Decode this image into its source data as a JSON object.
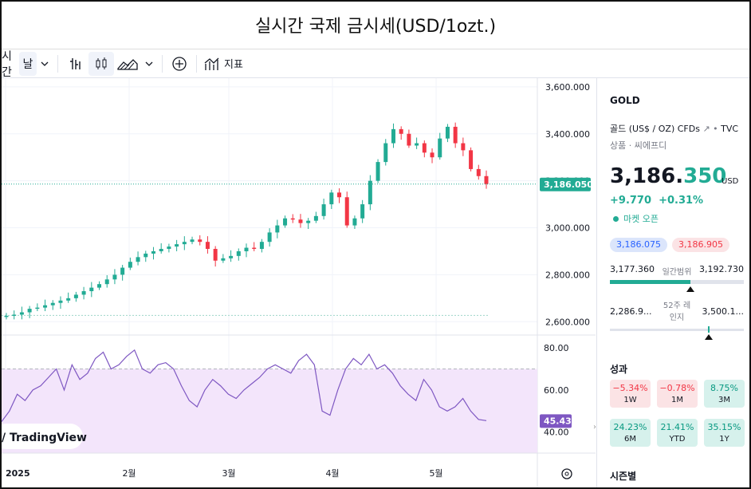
{
  "title": "실시간 국제 금시세(USD/1ozt.)",
  "toolbar": {
    "interval_label": "시간",
    "interval_value": "날",
    "indicators_label": "지표"
  },
  "chart": {
    "price_ticks": [
      "3,600.000",
      "3,400.000",
      "3,200.000",
      "3,000.000",
      "2,800.000",
      "2,600.000"
    ],
    "current_price_label": "3,186.050",
    "rsi_ticks": [
      "80.00",
      "60.00",
      "40.00"
    ],
    "rsi_value_label": "45.43",
    "watermark": "TradingView",
    "time_labels": [
      "2025",
      "2월",
      "3월",
      "4월",
      "5월"
    ],
    "colors": {
      "up": "#22ab94",
      "down": "#f23645",
      "rsi": "#7e57c2",
      "rsi_band": "#f3e5fb",
      "price_line": "#22ab94"
    }
  },
  "chart_data": {
    "type": "line",
    "series": [
      {
        "values": [
          2625,
          2630,
          2640,
          2655,
          2660,
          2670,
          2680,
          2690,
          2700,
          2715,
          2730,
          2745,
          2760,
          2780,
          2800,
          2830,
          2855,
          2875,
          2890,
          2900,
          2910,
          2920,
          2930,
          2940,
          2950,
          2940,
          2910,
          2860,
          2870,
          2880,
          2900,
          2915,
          2910,
          2940,
          2980,
          3010,
          3040,
          3035,
          3020,
          3030,
          3050,
          3100,
          3150,
          3130,
          3010,
          3040,
          3100,
          3200,
          3280,
          3360,
          3420,
          3400,
          3350,
          3360,
          3320,
          3300,
          3380,
          3430,
          3360,
          3330,
          3250,
          3220,
          3186
        ]
      },
      {
        "values": [
          45,
          50,
          58,
          55,
          60,
          62,
          66,
          70,
          60,
          72,
          65,
          68,
          75,
          78,
          70,
          72,
          76,
          79,
          70,
          68,
          72,
          73,
          70,
          62,
          55,
          52,
          60,
          65,
          62,
          58,
          56,
          60,
          63,
          66,
          70,
          72,
          70,
          68,
          74,
          77,
          72,
          50,
          48,
          60,
          70,
          75,
          72,
          77,
          70,
          72,
          68,
          62,
          58,
          55,
          65,
          60,
          52,
          50,
          52,
          56,
          50,
          46,
          45.43
        ]
      }
    ],
    "ylim": [
      2550,
      3620
    ],
    "rsi_ylim": [
      30,
      85
    ]
  },
  "panel": {
    "symbol": "GOLD",
    "description": "골드 (US$ / OZ) CFDs",
    "exchange": "TVC",
    "category": "상품 · 씨에프디",
    "price_main": "3,186.",
    "price_decimal": "350",
    "currency": "USD",
    "change": "+9.770",
    "change_pct": "+0.31%",
    "market_status": "마켓 오픈",
    "bid": "3,186.075",
    "ask": "3,186.905",
    "day_low": "3,177.360",
    "day_label": "일간범위",
    "day_high": "3,192.730",
    "day_fill": 0.6,
    "year_low": "2,286.9...",
    "year_label": "52주 레인지",
    "year_high": "3,500.1...",
    "year_pos": 0.74,
    "perf_title": "성과",
    "perf": [
      {
        "value": "−5.34%",
        "period": "1W",
        "sign": "neg"
      },
      {
        "value": "−0.78%",
        "period": "1M",
        "sign": "neg"
      },
      {
        "value": "8.75%",
        "period": "3M",
        "sign": "pos"
      },
      {
        "value": "24.23%",
        "period": "6M",
        "sign": "pos"
      },
      {
        "value": "21.41%",
        "period": "YTD",
        "sign": "pos"
      },
      {
        "value": "35.15%",
        "period": "1Y",
        "sign": "pos"
      }
    ],
    "seasonal": "시즌별"
  }
}
